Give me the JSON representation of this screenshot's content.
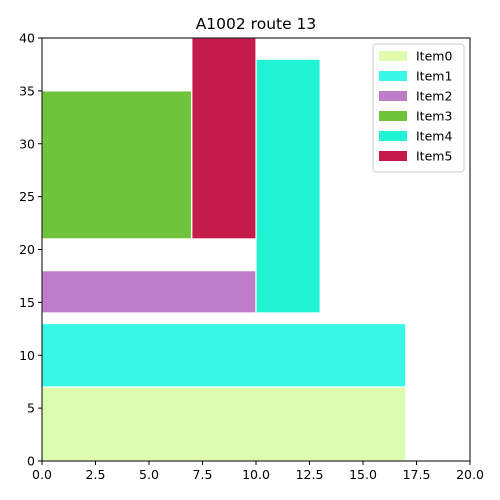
{
  "chart_data": {
    "type": "bar",
    "title": "A1002 route 13",
    "xlabel": "",
    "ylabel": "",
    "xlim": [
      0,
      20
    ],
    "ylim": [
      0,
      40
    ],
    "xticks": [
      "0.0",
      "2.5",
      "5.0",
      "7.5",
      "10.0",
      "12.5",
      "15.0",
      "17.5",
      "20.0"
    ],
    "yticks": [
      "0",
      "5",
      "10",
      "15",
      "20",
      "25",
      "30",
      "35",
      "40"
    ],
    "grid": false,
    "legend_position": "top-right",
    "series": [
      {
        "name": "Item0",
        "color": "#ddfcb0",
        "x0": 0.0,
        "x1": 17.0,
        "y0": 0.0,
        "y1": 7.0
      },
      {
        "name": "Item1",
        "color": "#37f7e6",
        "x0": 0.0,
        "x1": 17.0,
        "y0": 7.0,
        "y1": 13.0
      },
      {
        "name": "Item2",
        "color": "#bd7dc8",
        "x0": 0.0,
        "x1": 10.0,
        "y0": 14.0,
        "y1": 18.0
      },
      {
        "name": "Item3",
        "color": "#6fc43c",
        "x0": 0.0,
        "x1": 7.0,
        "y0": 21.0,
        "y1": 35.0
      },
      {
        "name": "Item4",
        "color": "#1ff3d3",
        "x0": 10.0,
        "x1": 13.0,
        "y0": 14.0,
        "y1": 38.0
      },
      {
        "name": "Item5",
        "color": "#c51a4c",
        "x0": 7.0,
        "x1": 10.0,
        "y0": 21.0,
        "y1": 40.0
      }
    ]
  }
}
